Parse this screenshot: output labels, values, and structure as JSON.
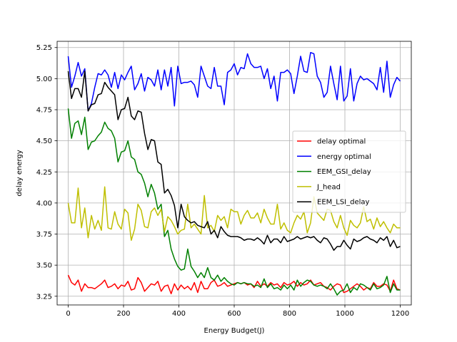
{
  "chart_data": {
    "type": "line",
    "title": "",
    "xlabel": "Energy Budget(J)",
    "ylabel": "delay energy",
    "xlim": [
      -40,
      1240
    ],
    "ylim": [
      3.18,
      5.3
    ],
    "xticks": [
      0,
      200,
      400,
      600,
      800,
      1000,
      1200
    ],
    "yticks": [
      3.25,
      3.5,
      3.75,
      4.0,
      4.25,
      4.5,
      4.75,
      5.0,
      5.25
    ],
    "xtick_labels": [
      "0",
      "200",
      "400",
      "600",
      "800",
      "1000",
      "1200"
    ],
    "ytick_labels": [
      "3.25",
      "3.50",
      "3.75",
      "4.00",
      "4.25",
      "4.50",
      "4.75",
      "5.00",
      "5.25"
    ],
    "grid": true,
    "legend_position": "center-right",
    "x_start": 0,
    "x_step": 12,
    "series": [
      {
        "name": "delay optimal",
        "color": "#ff0000",
        "values": [
          3.42,
          3.36,
          3.34,
          3.38,
          3.29,
          3.35,
          3.32,
          3.32,
          3.31,
          3.33,
          3.35,
          3.38,
          3.32,
          3.33,
          3.35,
          3.31,
          3.34,
          3.33,
          3.37,
          3.3,
          3.31,
          3.4,
          3.36,
          3.29,
          3.32,
          3.35,
          3.34,
          3.37,
          3.29,
          3.33,
          3.34,
          3.27,
          3.35,
          3.3,
          3.34,
          3.31,
          3.33,
          3.3,
          3.36,
          3.28,
          3.37,
          3.31,
          3.31,
          3.36,
          3.38,
          3.33,
          3.34,
          3.36,
          3.33,
          3.34,
          3.35,
          3.36,
          3.35,
          3.36,
          3.34,
          3.35,
          3.32,
          3.37,
          3.33,
          3.35,
          3.33,
          3.36,
          3.34,
          3.35,
          3.32,
          3.36,
          3.34,
          3.35,
          3.37,
          3.33,
          3.36,
          3.34,
          3.35,
          3.38,
          3.34,
          3.35,
          3.36,
          3.33,
          3.32,
          3.3,
          3.33,
          3.35,
          3.34,
          3.28,
          3.29,
          3.31,
          3.33,
          3.35,
          3.33,
          3.3,
          3.32,
          3.31,
          3.36,
          3.33,
          3.33,
          3.35,
          3.34,
          3.29,
          3.38,
          3.31,
          3.3
        ]
      },
      {
        "name": "energy optimal",
        "color": "#0000ff",
        "values": [
          5.18,
          4.93,
          5.02,
          5.13,
          5.02,
          5.08,
          4.74,
          4.8,
          4.93,
          5.04,
          5.03,
          5.07,
          5.03,
          4.93,
          5.05,
          4.92,
          5.03,
          4.99,
          5.05,
          5.1,
          4.91,
          4.96,
          5.04,
          4.9,
          5.01,
          4.99,
          4.94,
          5.07,
          4.91,
          5.07,
          4.94,
          5.09,
          4.78,
          5.1,
          4.96,
          4.97,
          4.97,
          4.98,
          4.95,
          4.85,
          5.1,
          5.02,
          4.94,
          4.92,
          5.09,
          4.94,
          4.94,
          4.79,
          5.05,
          5.07,
          5.12,
          5.03,
          5.09,
          5.08,
          5.2,
          5.12,
          5.09,
          5.09,
          5.1,
          5.0,
          5.08,
          4.92,
          5.02,
          4.82,
          5.05,
          5.05,
          5.07,
          5.04,
          4.88,
          5.02,
          5.18,
          5.06,
          5.05,
          5.21,
          5.2,
          5.02,
          4.97,
          4.85,
          4.89,
          5.1,
          4.96,
          4.83,
          5.1,
          4.82,
          4.86,
          5.08,
          4.82,
          4.96,
          5.02,
          4.99,
          5.0,
          4.98,
          4.96,
          4.91,
          5.09,
          4.89,
          5.14,
          4.85,
          4.95,
          5.01,
          4.98
        ]
      },
      {
        "name": "EEM_GSI_delay",
        "color": "#008000",
        "values": [
          4.76,
          4.52,
          4.64,
          4.66,
          4.55,
          4.69,
          4.43,
          4.49,
          4.5,
          4.54,
          4.57,
          4.65,
          4.6,
          4.58,
          4.52,
          4.33,
          4.41,
          4.42,
          4.5,
          4.37,
          4.35,
          4.25,
          4.23,
          4.16,
          4.05,
          4.15,
          4.08,
          3.95,
          3.99,
          3.73,
          3.78,
          3.63,
          3.55,
          3.49,
          3.46,
          3.47,
          3.63,
          3.49,
          3.45,
          3.4,
          3.44,
          3.4,
          3.48,
          3.4,
          3.38,
          3.42,
          3.37,
          3.4,
          3.37,
          3.35,
          3.34,
          3.36,
          3.35,
          3.36,
          3.35,
          3.35,
          3.33,
          3.34,
          3.32,
          3.39,
          3.32,
          3.35,
          3.31,
          3.32,
          3.3,
          3.34,
          3.31,
          3.34,
          3.3,
          3.38,
          3.33,
          3.36,
          3.38,
          3.37,
          3.34,
          3.33,
          3.34,
          3.33,
          3.31,
          3.35,
          3.31,
          3.26,
          3.29,
          3.3,
          3.35,
          3.28,
          3.32,
          3.3,
          3.35,
          3.34,
          3.32,
          3.3,
          3.35,
          3.31,
          3.32,
          3.34,
          3.41,
          3.28,
          3.35,
          3.3,
          3.3
        ]
      },
      {
        "name": "J_head",
        "color": "#bfbf00",
        "values": [
          4.0,
          3.84,
          3.84,
          4.12,
          3.8,
          3.96,
          3.72,
          3.9,
          3.79,
          3.86,
          3.78,
          4.13,
          3.8,
          3.79,
          3.93,
          3.83,
          3.79,
          3.95,
          3.92,
          3.7,
          3.79,
          3.99,
          3.94,
          3.81,
          3.8,
          3.93,
          3.96,
          3.9,
          3.95,
          3.77,
          3.89,
          3.86,
          3.81,
          3.75,
          3.78,
          3.79,
          3.99,
          3.8,
          3.83,
          3.79,
          3.75,
          4.06,
          3.8,
          3.82,
          3.77,
          3.9,
          3.86,
          3.89,
          3.8,
          3.95,
          3.93,
          3.93,
          3.83,
          3.9,
          3.94,
          3.88,
          3.88,
          3.92,
          3.84,
          3.95,
          3.88,
          3.83,
          3.83,
          3.99,
          3.79,
          3.84,
          3.78,
          3.76,
          3.84,
          3.9,
          3.87,
          3.93,
          3.76,
          3.84,
          4.05,
          3.92,
          3.89,
          3.86,
          3.95,
          3.94,
          3.85,
          3.8,
          3.9,
          3.8,
          3.74,
          3.86,
          3.82,
          3.8,
          3.84,
          3.97,
          3.85,
          3.87,
          3.79,
          3.88,
          3.81,
          3.85,
          3.8,
          3.76,
          3.83,
          3.8,
          3.8
        ]
      },
      {
        "name": "EEM_LSI_delay",
        "color": "#000000",
        "values": [
          5.06,
          4.84,
          4.92,
          4.92,
          4.85,
          5.06,
          4.74,
          4.79,
          4.8,
          4.87,
          4.88,
          4.97,
          4.93,
          4.9,
          4.87,
          4.67,
          4.75,
          4.76,
          4.85,
          4.7,
          4.67,
          4.74,
          4.73,
          4.56,
          4.43,
          4.51,
          4.5,
          4.33,
          4.31,
          4.08,
          4.11,
          4.06,
          3.98,
          3.8,
          3.99,
          3.89,
          3.86,
          3.84,
          3.85,
          3.82,
          3.81,
          3.8,
          3.85,
          3.75,
          3.78,
          3.72,
          3.81,
          3.77,
          3.74,
          3.73,
          3.73,
          3.73,
          3.72,
          3.7,
          3.71,
          3.71,
          3.7,
          3.72,
          3.7,
          3.67,
          3.74,
          3.68,
          3.71,
          3.71,
          3.68,
          3.73,
          3.69,
          3.7,
          3.71,
          3.73,
          3.71,
          3.72,
          3.73,
          3.72,
          3.73,
          3.7,
          3.68,
          3.72,
          3.71,
          3.67,
          3.62,
          3.65,
          3.65,
          3.7,
          3.66,
          3.63,
          3.71,
          3.69,
          3.7,
          3.72,
          3.73,
          3.71,
          3.7,
          3.68,
          3.72,
          3.7,
          3.73,
          3.65,
          3.7,
          3.64,
          3.65
        ]
      }
    ]
  }
}
